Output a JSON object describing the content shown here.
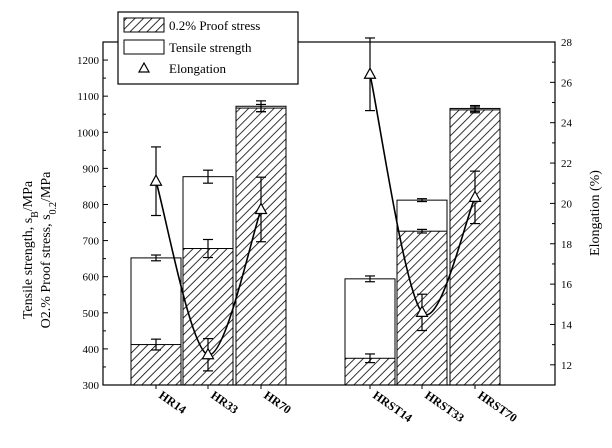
{
  "chart_data": {
    "type": "bar",
    "categories": [
      "HR14",
      "HR33",
      "HR70",
      "HRST14",
      "HRST33",
      "HRST70"
    ],
    "series": [
      {
        "name": "0.2% Proof stress",
        "values": [
          412,
          678,
          1067,
          374,
          726,
          1062
        ],
        "errors": [
          15,
          25,
          10,
          12,
          5,
          8
        ],
        "axis": "left",
        "style": "hatched-bar"
      },
      {
        "name": "Tensile strength",
        "values": [
          652,
          877,
          1072,
          594,
          812,
          1066
        ],
        "errors": [
          8,
          18,
          15,
          8,
          4,
          8
        ],
        "axis": "left",
        "style": "open-bar"
      },
      {
        "name": "Elongation",
        "values": [
          21.1,
          12.5,
          19.7,
          26.4,
          14.6,
          20.3
        ],
        "errors": [
          1.7,
          0.8,
          1.6,
          1.8,
          0.9,
          1.3
        ],
        "axis": "right",
        "style": "triangle-line"
      }
    ],
    "ylabel_left_line1": "Tensile strength, s",
    "ylabel_left_sub1": "B",
    "ylabel_left_unit1": "/MPa",
    "ylabel_left_line2": "O2.% Proof stress, s",
    "ylabel_left_sub2": "0.2",
    "ylabel_left_unit2": "/MPa",
    "ylabel_right": "Elongation (%)",
    "ylim_left": [
      300,
      1250
    ],
    "yticks_left": [
      300,
      400,
      500,
      600,
      700,
      800,
      900,
      1000,
      1100,
      1200
    ],
    "ylim_right": [
      11,
      28
    ],
    "yticks_right": [
      12,
      14,
      16,
      18,
      20,
      22,
      24,
      26,
      28
    ],
    "legend_position": "top-left",
    "grid": false
  }
}
